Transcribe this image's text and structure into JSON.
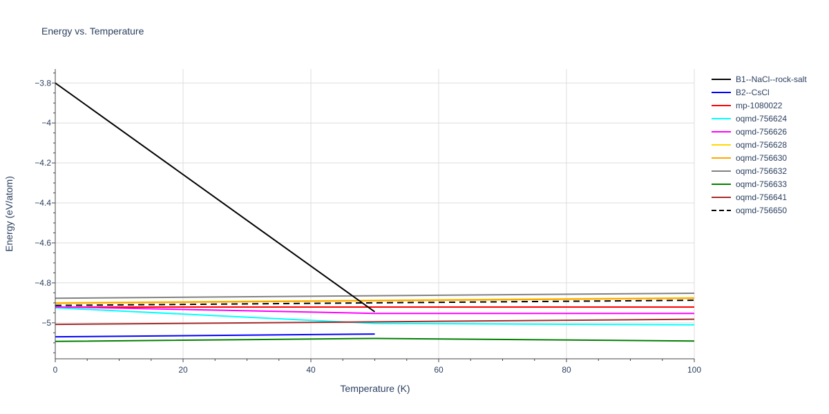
{
  "chart_data": {
    "type": "line",
    "title": "Energy vs. Temperature",
    "xlabel": "Temperature (K)",
    "ylabel": "Energy (eV/atom)",
    "xlim": [
      0,
      100
    ],
    "ylim": [
      -5.18,
      -3.73
    ],
    "x_ticks": [
      0,
      20,
      40,
      60,
      80,
      100
    ],
    "x_tick_labels": [
      "0",
      "20",
      "40",
      "60",
      "80",
      "100"
    ],
    "y_ticks": [
      -3.8,
      -4.0,
      -4.2,
      -4.4,
      -4.6,
      -4.8,
      -5.0
    ],
    "y_tick_labels": [
      "−3.8",
      "−4",
      "−4.2",
      "−4.4",
      "−4.6",
      "−4.8",
      "−5"
    ],
    "grid": true,
    "legend_position": "top-right",
    "series": [
      {
        "name": "B1--NaCl--rock-salt",
        "color": "#000000",
        "dash": "solid",
        "x": [
          0,
          50
        ],
        "y": [
          -3.8,
          -4.945
        ]
      },
      {
        "name": "B2--CsCl",
        "color": "#0000ff",
        "dash": "solid",
        "x": [
          0,
          50
        ],
        "y": [
          -5.07,
          -5.056
        ]
      },
      {
        "name": "mp-1080022",
        "color": "#ff0000",
        "dash": "solid",
        "x": [
          0,
          100
        ],
        "y": [
          -4.921,
          -4.921
        ]
      },
      {
        "name": "oqmd-756624",
        "color": "#00ffff",
        "dash": "solid",
        "x": [
          0,
          50,
          100
        ],
        "y": [
          -4.925,
          -5.003,
          -5.01
        ]
      },
      {
        "name": "oqmd-756626",
        "color": "#ff00ff",
        "dash": "solid",
        "x": [
          0,
          50,
          100
        ],
        "y": [
          -4.92,
          -4.953,
          -4.953
        ]
      },
      {
        "name": "oqmd-756628",
        "color": "#ffd700",
        "dash": "solid",
        "x": [
          0,
          100
        ],
        "y": [
          -4.9,
          -4.875
        ]
      },
      {
        "name": "oqmd-756630",
        "color": "#ffa500",
        "dash": "solid",
        "x": [
          0,
          100
        ],
        "y": [
          -4.902,
          -4.877
        ]
      },
      {
        "name": "oqmd-756632",
        "color": "#808080",
        "dash": "solid",
        "x": [
          0,
          100
        ],
        "y": [
          -4.877,
          -4.852
        ]
      },
      {
        "name": "oqmd-756633",
        "color": "#008000",
        "dash": "solid",
        "x": [
          0,
          50,
          100
        ],
        "y": [
          -5.093,
          -5.078,
          -5.091
        ]
      },
      {
        "name": "oqmd-756641",
        "color": "#a52a2a",
        "dash": "solid",
        "x": [
          0,
          100
        ],
        "y": [
          -5.008,
          -4.982
        ]
      },
      {
        "name": "oqmd-756650",
        "color": "#000000",
        "dash": "dash",
        "x": [
          0,
          100
        ],
        "y": [
          -4.913,
          -4.887
        ]
      }
    ]
  }
}
